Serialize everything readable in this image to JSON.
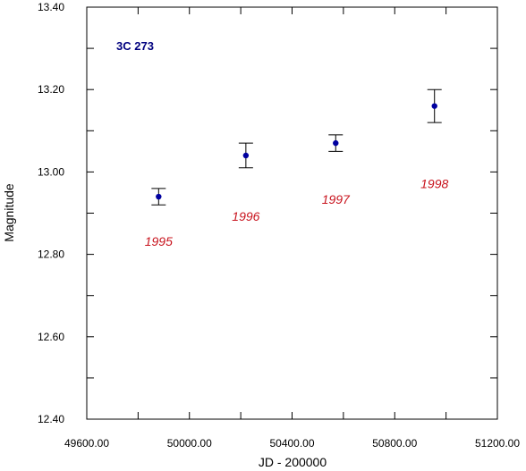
{
  "chart_data": {
    "type": "scatter",
    "title": "3C 273",
    "xlabel": "JD - 200000",
    "ylabel": "Magnitude",
    "xlim": [
      49600,
      51200
    ],
    "ylim": [
      12.4,
      13.4
    ],
    "x_ticks": [
      49600,
      50000,
      50400,
      50800,
      51200
    ],
    "x_tick_labels": [
      "49600.00",
      "50000.00",
      "50400.00",
      "50800.00",
      "51200.00"
    ],
    "y_ticks": [
      12.4,
      12.6,
      12.8,
      13.0,
      13.2,
      13.4
    ],
    "y_tick_labels": [
      "12.40",
      "12.60",
      "12.80",
      "13.00",
      "13.20",
      "13.40"
    ],
    "grid": false,
    "point_color": "#0000a0",
    "annotation_color": "#c8141e",
    "points": [
      {
        "x": 49880,
        "y": 12.94,
        "err": 0.02,
        "label": "1995"
      },
      {
        "x": 50220,
        "y": 13.04,
        "err": 0.03,
        "label": "1996"
      },
      {
        "x": 50570,
        "y": 13.07,
        "err": 0.02,
        "label": "1997"
      },
      {
        "x": 50955,
        "y": 13.16,
        "err": 0.04,
        "label": "1998"
      }
    ]
  }
}
